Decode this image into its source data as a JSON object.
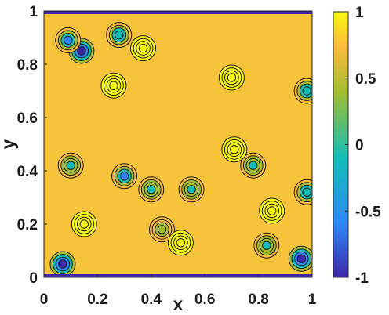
{
  "chart_data": {
    "type": "heatmap",
    "subtype": "filled-contour",
    "title": "",
    "xlabel": "x",
    "ylabel": "y",
    "xlim": [
      0,
      1
    ],
    "ylim": [
      0,
      1
    ],
    "x_ticks": [
      "0",
      "0.2",
      "0.4",
      "0.6",
      "0.8",
      "1"
    ],
    "y_ticks": [
      "0",
      "0.2",
      "0.4",
      "0.6",
      "0.8",
      "1"
    ],
    "colorbar": {
      "range": [
        -1,
        1
      ],
      "ticks": [
        "-1",
        "-0.5",
        "0",
        "0.5",
        "1"
      ],
      "colormap": "parula",
      "colors": [
        "#3e26a8",
        "#2e87f7",
        "#12bfb9",
        "#a5be30",
        "#fcbb3d",
        "#f9fb0e"
      ]
    },
    "background_level": 0.8,
    "contour_line_color": "#1a1a1a",
    "features": [
      {
        "kind": "low",
        "x": 0.14,
        "y": 0.85,
        "value": -1.0
      },
      {
        "kind": "low",
        "x": 0.07,
        "y": 0.05,
        "value": -1.0
      },
      {
        "kind": "low",
        "x": 0.96,
        "y": 0.07,
        "value": -1.0
      },
      {
        "kind": "low",
        "x": 0.3,
        "y": 0.38,
        "value": -0.4
      },
      {
        "kind": "low",
        "x": 0.28,
        "y": 0.91,
        "value": -0.3
      },
      {
        "kind": "low",
        "x": 0.09,
        "y": 0.89,
        "value": -0.4
      },
      {
        "kind": "low",
        "x": 0.4,
        "y": 0.33,
        "value": -0.2
      },
      {
        "kind": "low",
        "x": 0.44,
        "y": 0.18,
        "value": 0.0
      },
      {
        "kind": "low",
        "x": 0.83,
        "y": 0.12,
        "value": -0.2
      },
      {
        "kind": "low",
        "x": 0.1,
        "y": 0.42,
        "value": -0.2
      },
      {
        "kind": "low",
        "x": 0.55,
        "y": 0.33,
        "value": -0.1
      },
      {
        "kind": "low",
        "x": 0.78,
        "y": 0.42,
        "value": -0.1
      },
      {
        "kind": "low",
        "x": 0.98,
        "y": 0.7,
        "value": -0.3
      },
      {
        "kind": "low",
        "x": 0.98,
        "y": 0.32,
        "value": -0.3
      },
      {
        "kind": "high",
        "x": 0.37,
        "y": 0.86,
        "value": 1.0
      },
      {
        "kind": "high",
        "x": 0.7,
        "y": 0.75,
        "value": 1.0
      },
      {
        "kind": "high",
        "x": 0.26,
        "y": 0.72,
        "value": 1.0
      },
      {
        "kind": "high",
        "x": 0.85,
        "y": 0.25,
        "value": 1.0
      },
      {
        "kind": "high",
        "x": 0.15,
        "y": 0.2,
        "value": 1.0
      },
      {
        "kind": "high",
        "x": 0.71,
        "y": 0.48,
        "value": 1.0
      },
      {
        "kind": "high",
        "x": 0.51,
        "y": 0.13,
        "value": 1.0
      }
    ]
  }
}
